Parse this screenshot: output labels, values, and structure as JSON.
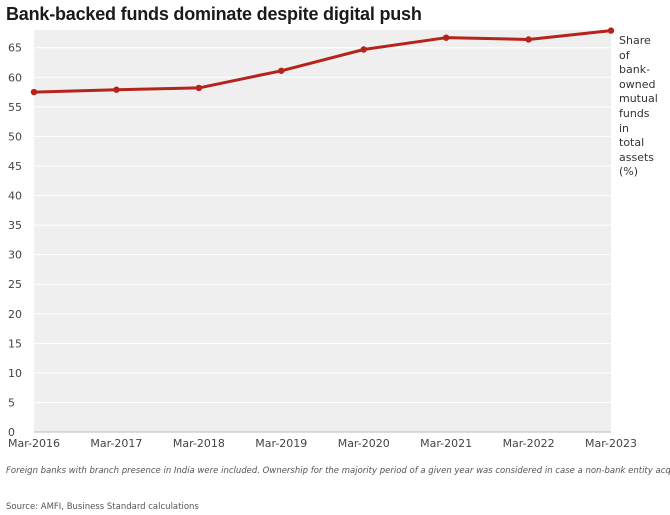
{
  "chart_data": {
    "type": "line",
    "title": "Bank-backed funds dominate despite digital push",
    "categories": [
      "Mar-2016",
      "Mar-2017",
      "Mar-2018",
      "Mar-2019",
      "Mar-2020",
      "Mar-2021",
      "Mar-2022",
      "Mar-2023"
    ],
    "series": [
      {
        "name": "Share of bank-owned mutual funds in total assets (%)",
        "values": [
          57.5,
          57.9,
          58.2,
          61.1,
          64.7,
          66.7,
          66.4,
          67.9
        ]
      }
    ],
    "series_label_lines": [
      "Share",
      "of",
      "bank-",
      "owned",
      "mutual",
      "funds",
      "in",
      "total",
      "assets",
      "(%)"
    ],
    "ylim": [
      0,
      68
    ],
    "yticks": [
      0,
      5,
      10,
      15,
      20,
      25,
      30,
      35,
      40,
      45,
      50,
      55,
      60,
      65
    ],
    "grid": true,
    "colors": {
      "line": "#b5241b",
      "plot_background": "#efefef",
      "grid": "#ffffff"
    }
  },
  "footnote": "Foreign banks with branch presence in India were included. Ownership for the majority period of a given year was considered in case a non-bank entity acquired a bank-backed asset manager mid-year.",
  "source": "Source: AMFI, Business Standard calculations"
}
